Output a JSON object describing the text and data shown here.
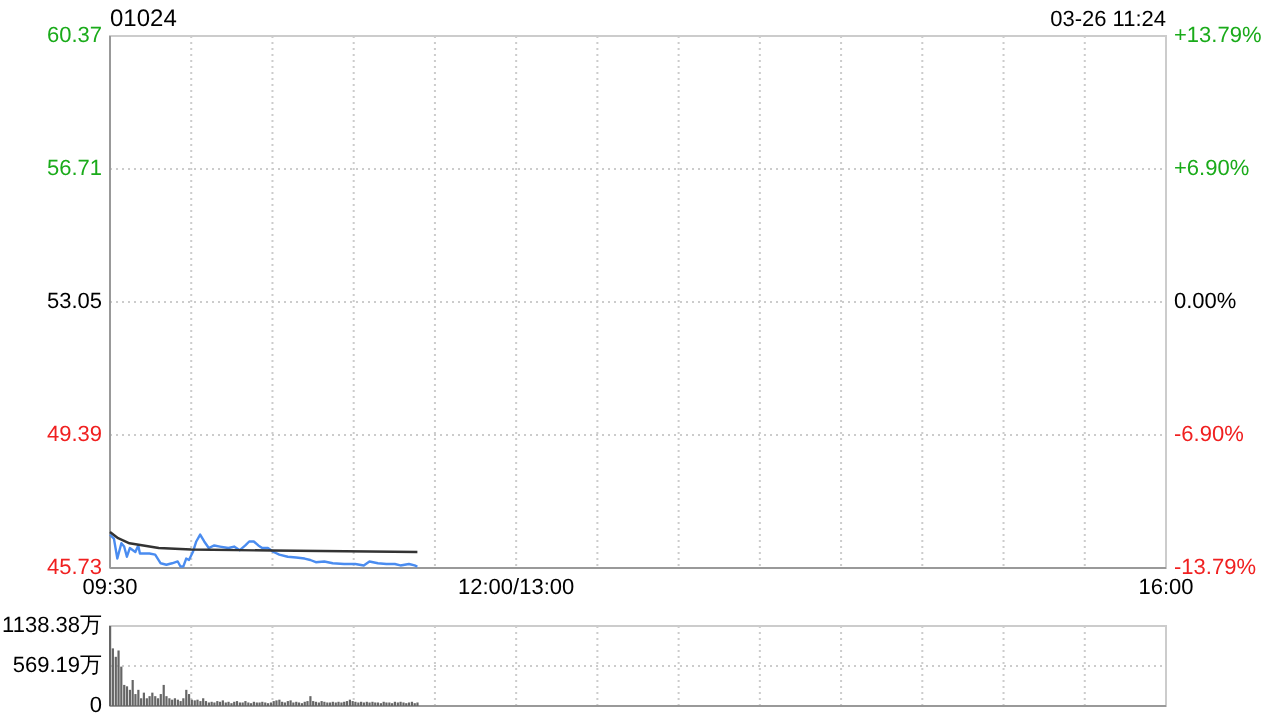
{
  "chart_data": [
    {
      "type": "line",
      "title": "01024",
      "annotations": [
        "03-26 11:24"
      ],
      "xlim": [
        9.5,
        16
      ],
      "xticks": [
        {
          "value": 9.5,
          "label": "09:30"
        },
        {
          "value": 10,
          "label": null
        },
        {
          "value": 10.5,
          "label": null
        },
        {
          "value": 11,
          "label": null
        },
        {
          "value": 11.5,
          "label": null
        },
        {
          "value": 12,
          "label": "12:00/13:00"
        },
        {
          "value": 12.5,
          "label": null
        },
        {
          "value": 13,
          "label": null
        },
        {
          "value": 13.5,
          "label": null
        },
        {
          "value": 14,
          "label": null
        },
        {
          "value": 14.5,
          "label": null
        },
        {
          "value": 15,
          "label": null
        },
        {
          "value": 15.5,
          "label": null
        },
        {
          "value": 16,
          "label": "16:00"
        }
      ],
      "ylim": [
        45.73,
        60.37
      ],
      "yticks": [
        45.73,
        49.39,
        53.05,
        56.71,
        60.37
      ],
      "y2lim": [
        -13.79,
        13.79
      ],
      "y2ticks": [
        {
          "value": -13.79,
          "label": "-13.79%"
        },
        {
          "value": -6.9,
          "label": "-6.90%"
        },
        {
          "value": 0,
          "label": "0.00%"
        },
        {
          "value": 6.9,
          "label": "+6.90%"
        },
        {
          "value": 13.79,
          "label": "+13.79%"
        }
      ],
      "grid": true,
      "series": [
        {
          "color": "#4a8cf0",
          "x": [
            9.5,
            9.524,
            9.545,
            9.57,
            9.587,
            9.604,
            9.622,
            9.656,
            9.674,
            9.684,
            9.708,
            9.743,
            9.778,
            9.812,
            9.847,
            9.882,
            9.917,
            9.934,
            9.951,
            9.969,
            9.986,
            10.01,
            10.031,
            10.055,
            10.08,
            10.108,
            10.142,
            10.177,
            10.229,
            10.264,
            10.299,
            10.333,
            10.357,
            10.385,
            10.413,
            10.437,
            10.472,
            10.507,
            10.542,
            10.594,
            10.646,
            10.698,
            10.733,
            10.767,
            10.819,
            10.871,
            10.941,
            11.01,
            11.062,
            11.097,
            11.149,
            11.201,
            11.253,
            11.288,
            11.34,
            11.375,
            11.392
          ],
          "values": [
            46.65,
            46.54,
            45.99,
            46.41,
            46.32,
            46.04,
            46.28,
            46.17,
            46.35,
            46.13,
            46.13,
            46.13,
            46.1,
            45.86,
            45.82,
            45.86,
            45.91,
            45.77,
            45.77,
            45.99,
            45.95,
            46.17,
            46.46,
            46.65,
            46.46,
            46.28,
            46.35,
            46.32,
            46.28,
            46.32,
            46.22,
            46.35,
            46.46,
            46.46,
            46.35,
            46.28,
            46.28,
            46.17,
            46.1,
            46.04,
            46.02,
            45.99,
            45.95,
            45.89,
            45.91,
            45.86,
            45.84,
            45.84,
            45.8,
            45.91,
            45.86,
            45.84,
            45.84,
            45.8,
            45.84,
            45.8,
            45.77
          ]
        },
        {
          "color": "#333333",
          "x": [
            9.5,
            9.55,
            9.62,
            9.8,
            10.0,
            10.5,
            11.392
          ],
          "values": [
            46.72,
            46.55,
            46.41,
            46.28,
            46.24,
            46.21,
            46.17
          ]
        }
      ]
    },
    {
      "type": "bar",
      "tick_labels": "y",
      "grid": true,
      "xlim": [
        9.5,
        16
      ],
      "xticks": [
        10,
        10.5,
        11,
        11.5,
        12,
        12.5,
        13,
        13.5,
        14,
        14.5,
        15,
        15.5
      ],
      "ylim": [
        0,
        1138.38
      ],
      "yticks": [
        {
          "value": 0,
          "label": "0"
        },
        {
          "value": 569.19,
          "label": "569.19万"
        },
        {
          "value": 1138.38,
          "label": "1138.38万"
        }
      ],
      "series": [
        {
          "color": "#666666",
          "x": [
            9.5,
            9.517,
            9.535,
            9.552,
            9.569,
            9.587,
            9.604,
            9.622,
            9.639,
            9.656,
            9.674,
            9.691,
            9.708,
            9.726,
            9.743,
            9.76,
            9.778,
            9.795,
            9.812,
            9.83,
            9.847,
            9.865,
            9.882,
            9.899,
            9.917,
            9.934,
            9.951,
            9.969,
            9.986,
            10.003,
            10.021,
            10.038,
            10.056,
            10.073,
            10.09,
            10.108,
            10.125,
            10.142,
            10.16,
            10.177,
            10.194,
            10.212,
            10.229,
            10.247,
            10.264,
            10.281,
            10.299,
            10.316,
            10.333,
            10.351,
            10.368,
            10.385,
            10.403,
            10.42,
            10.437,
            10.455,
            10.472,
            10.49,
            10.507,
            10.524,
            10.542,
            10.559,
            10.576,
            10.594,
            10.611,
            10.628,
            10.646,
            10.663,
            10.681,
            10.698,
            10.715,
            10.733,
            10.75,
            10.767,
            10.785,
            10.802,
            10.819,
            10.837,
            10.854,
            10.871,
            10.889,
            10.906,
            10.924,
            10.941,
            10.958,
            10.976,
            10.993,
            11.01,
            11.028,
            11.045,
            11.062,
            11.08,
            11.097,
            11.115,
            11.132,
            11.149,
            11.167,
            11.184,
            11.201,
            11.219,
            11.236,
            11.253,
            11.271,
            11.288,
            11.306,
            11.323,
            11.34,
            11.358,
            11.375,
            11.392
          ],
          "values": [
            1138,
            820,
            700,
            790,
            560,
            300,
            280,
            230,
            370,
            170,
            230,
            110,
            190,
            110,
            140,
            190,
            140,
            110,
            170,
            300,
            140,
            110,
            90,
            110,
            90,
            70,
            110,
            230,
            170,
            90,
            80,
            90,
            70,
            110,
            70,
            50,
            60,
            50,
            70,
            60,
            80,
            50,
            60,
            40,
            60,
            70,
            50,
            50,
            70,
            50,
            40,
            60,
            50,
            50,
            60,
            50,
            40,
            50,
            70,
            80,
            90,
            60,
            50,
            70,
            80,
            50,
            60,
            50,
            40,
            60,
            70,
            140,
            70,
            60,
            50,
            70,
            60,
            50,
            50,
            60,
            50,
            60,
            50,
            60,
            70,
            90,
            70,
            60,
            50,
            60,
            50,
            60,
            50,
            60,
            50,
            50,
            40,
            60,
            50,
            50,
            40,
            60,
            50,
            60,
            50,
            40,
            50,
            60,
            40,
            50
          ]
        }
      ]
    }
  ]
}
